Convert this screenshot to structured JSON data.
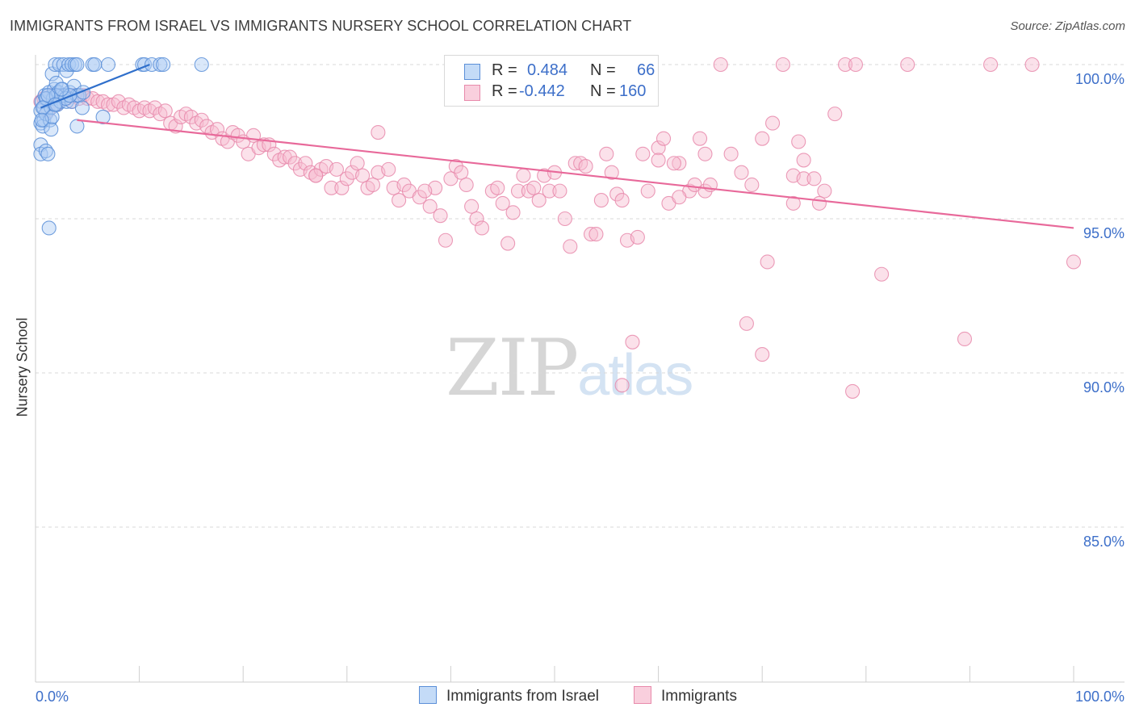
{
  "title": "IMMIGRANTS FROM ISRAEL VS IMMIGRANTS NURSERY SCHOOL CORRELATION CHART",
  "source": "Source: ZipAtlas.com",
  "watermark": {
    "zip": "ZIP",
    "atlas": "atlas"
  },
  "colors": {
    "blue_fill": "#aeccf4",
    "blue_stroke": "#5b8fd8",
    "blue_line": "#2f6fcb",
    "pink_fill": "#f6bcd0",
    "pink_stroke": "#e88aab",
    "pink_line": "#e8699a",
    "axis_text": "#3d6fc9",
    "grid": "#d8d8d8"
  },
  "legend": {
    "rows": [
      {
        "r_label": "R =",
        "r_value": "0.484",
        "n_label": "N =",
        "n_value": "66"
      },
      {
        "r_label": "R =",
        "r_value": "-0.442",
        "n_label": "N =",
        "n_value": "160"
      }
    ]
  },
  "bottom_legend": {
    "israel": "Immigrants from Israel",
    "immigrants": "Immigrants"
  },
  "chart_data": {
    "type": "scatter",
    "title": "IMMIGRANTS FROM ISRAEL VS IMMIGRANTS NURSERY SCHOOL CORRELATION CHART",
    "xlabel": "",
    "ylabel": "Nursery School",
    "xlim": [
      0,
      100
    ],
    "ylim": [
      80.5,
      101
    ],
    "x_tick_labels": [
      "0.0%",
      "100.0%"
    ],
    "y_ticks": [
      100,
      95,
      90,
      85
    ],
    "y_tick_labels": [
      "100.0%",
      "95.0%",
      "90.0%",
      "85.0%"
    ],
    "grid": true,
    "series": [
      {
        "name": "Immigrants from Israel",
        "color": "blue",
        "R": 0.484,
        "N": 66,
        "trend": {
          "x": [
            0.5,
            11
          ],
          "y": [
            98.6,
            100.0
          ]
        },
        "points": [
          [
            0.5,
            98.5
          ],
          [
            0.5,
            98.1
          ],
          [
            0.5,
            97.4
          ],
          [
            0.5,
            97.1
          ],
          [
            0.6,
            98.8
          ],
          [
            0.7,
            98.0
          ],
          [
            0.8,
            98.6
          ],
          [
            0.8,
            98.2
          ],
          [
            0.9,
            99.0
          ],
          [
            1.0,
            97.2
          ],
          [
            1.0,
            98.4
          ],
          [
            1.1,
            98.9
          ],
          [
            1.2,
            97.1
          ],
          [
            1.3,
            94.7
          ],
          [
            1.3,
            99.1
          ],
          [
            1.4,
            98.2
          ],
          [
            1.5,
            98.6
          ],
          [
            1.5,
            97.9
          ],
          [
            1.6,
            99.7
          ],
          [
            1.7,
            98.9
          ],
          [
            1.8,
            98.7
          ],
          [
            1.8,
            99.2
          ],
          [
            1.9,
            100.0
          ],
          [
            2.0,
            99.4
          ],
          [
            2.1,
            98.7
          ],
          [
            2.2,
            99.1
          ],
          [
            2.3,
            100.0
          ],
          [
            2.4,
            98.8
          ],
          [
            2.5,
            99.0
          ],
          [
            2.6,
            99.2
          ],
          [
            2.7,
            100.0
          ],
          [
            2.8,
            99.0
          ],
          [
            3.0,
            99.8
          ],
          [
            3.0,
            98.8
          ],
          [
            3.2,
            100.0
          ],
          [
            3.3,
            99.1
          ],
          [
            3.5,
            98.8
          ],
          [
            3.5,
            100.0
          ],
          [
            3.7,
            99.3
          ],
          [
            3.8,
            100.0
          ],
          [
            4.0,
            99.0
          ],
          [
            4.0,
            98.0
          ],
          [
            4.2,
            99.0
          ],
          [
            4.5,
            98.6
          ],
          [
            4.6,
            99.1
          ],
          [
            5.5,
            100.0
          ],
          [
            5.7,
            100.0
          ],
          [
            7.0,
            100.0
          ],
          [
            6.5,
            98.3
          ],
          [
            10.3,
            100.0
          ],
          [
            10.5,
            100.0
          ],
          [
            11.2,
            100.0
          ],
          [
            12.0,
            100.0
          ],
          [
            12.3,
            100.0
          ],
          [
            16.0,
            100.0
          ],
          [
            1.0,
            98.9
          ],
          [
            1.6,
            98.3
          ],
          [
            2.0,
            99.0
          ],
          [
            2.9,
            98.9
          ],
          [
            3.3,
            99.0
          ],
          [
            0.7,
            98.6
          ],
          [
            1.2,
            99.0
          ],
          [
            1.9,
            98.7
          ],
          [
            2.5,
            99.2
          ],
          [
            0.6,
            98.2
          ],
          [
            4.0,
            100.0
          ]
        ]
      },
      {
        "name": "Immigrants",
        "color": "pink",
        "R": -0.442,
        "N": 160,
        "trend": {
          "x": [
            4,
            100
          ],
          "y": [
            98.2,
            94.7
          ]
        },
        "points": [
          [
            0.5,
            98.8
          ],
          [
            0.8,
            98.9
          ],
          [
            1.2,
            98.5
          ],
          [
            1.5,
            99.0
          ],
          [
            2.0,
            98.7
          ],
          [
            2.2,
            99.0
          ],
          [
            2.8,
            99.0
          ],
          [
            3.0,
            98.9
          ],
          [
            3.5,
            98.8
          ],
          [
            3.8,
            99.0
          ],
          [
            4.2,
            98.9
          ],
          [
            4.6,
            99.0
          ],
          [
            5.0,
            98.9
          ],
          [
            5.5,
            98.9
          ],
          [
            6.0,
            98.8
          ],
          [
            6.5,
            98.8
          ],
          [
            7.0,
            98.7
          ],
          [
            7.5,
            98.7
          ],
          [
            8.0,
            98.8
          ],
          [
            8.5,
            98.6
          ],
          [
            9.0,
            98.7
          ],
          [
            9.5,
            98.6
          ],
          [
            10.0,
            98.5
          ],
          [
            10.5,
            98.6
          ],
          [
            11.0,
            98.5
          ],
          [
            11.5,
            98.6
          ],
          [
            12.0,
            98.4
          ],
          [
            12.5,
            98.5
          ],
          [
            13.0,
            98.1
          ],
          [
            13.5,
            98.0
          ],
          [
            14.0,
            98.3
          ],
          [
            14.5,
            98.4
          ],
          [
            15.0,
            98.3
          ],
          [
            15.5,
            98.1
          ],
          [
            16.0,
            98.2
          ],
          [
            16.5,
            98.0
          ],
          [
            17.0,
            97.8
          ],
          [
            17.5,
            97.9
          ],
          [
            18.0,
            97.6
          ],
          [
            18.5,
            97.5
          ],
          [
            19.0,
            97.8
          ],
          [
            19.5,
            97.7
          ],
          [
            20.0,
            97.5
          ],
          [
            20.5,
            97.1
          ],
          [
            21.0,
            97.7
          ],
          [
            21.5,
            97.3
          ],
          [
            22.0,
            97.4
          ],
          [
            22.5,
            97.4
          ],
          [
            23.0,
            97.1
          ],
          [
            23.5,
            96.9
          ],
          [
            24.0,
            97.0
          ],
          [
            24.5,
            97.0
          ],
          [
            25.0,
            96.8
          ],
          [
            25.5,
            96.6
          ],
          [
            26.0,
            96.8
          ],
          [
            26.5,
            96.5
          ],
          [
            27.0,
            96.4
          ],
          [
            27.5,
            96.6
          ],
          [
            28.0,
            96.7
          ],
          [
            28.5,
            96.0
          ],
          [
            29.0,
            96.6
          ],
          [
            29.5,
            96.0
          ],
          [
            30.0,
            96.3
          ],
          [
            30.5,
            96.5
          ],
          [
            31.0,
            96.8
          ],
          [
            31.5,
            96.4
          ],
          [
            32.0,
            96.0
          ],
          [
            32.5,
            96.1
          ],
          [
            33.0,
            96.5
          ],
          [
            34.0,
            96.6
          ],
          [
            34.5,
            96.0
          ],
          [
            35.0,
            95.6
          ],
          [
            35.5,
            96.1
          ],
          [
            36.0,
            95.9
          ],
          [
            37.0,
            95.7
          ],
          [
            38.0,
            95.4
          ],
          [
            38.5,
            96.0
          ],
          [
            39.0,
            95.1
          ],
          [
            39.5,
            94.3
          ],
          [
            40.0,
            96.3
          ],
          [
            40.5,
            96.7
          ],
          [
            41.0,
            96.5
          ],
          [
            41.5,
            96.1
          ],
          [
            42.0,
            95.4
          ],
          [
            42.5,
            95.0
          ],
          [
            43.0,
            94.7
          ],
          [
            44.0,
            95.9
          ],
          [
            45.0,
            95.5
          ],
          [
            45.5,
            94.2
          ],
          [
            46.0,
            95.2
          ],
          [
            46.5,
            95.9
          ],
          [
            47.0,
            96.4
          ],
          [
            47.5,
            95.9
          ],
          [
            48.0,
            96.0
          ],
          [
            48.5,
            95.6
          ],
          [
            49.0,
            96.4
          ],
          [
            49.5,
            95.9
          ],
          [
            50.0,
            96.5
          ],
          [
            50.5,
            95.9
          ],
          [
            51.0,
            95.0
          ],
          [
            51.5,
            94.1
          ],
          [
            52.0,
            96.8
          ],
          [
            52.5,
            96.8
          ],
          [
            53.0,
            96.7
          ],
          [
            53.5,
            94.5
          ],
          [
            54.0,
            94.5
          ],
          [
            54.5,
            95.6
          ],
          [
            55.0,
            97.1
          ],
          [
            55.5,
            96.5
          ],
          [
            56.0,
            95.8
          ],
          [
            56.5,
            95.6
          ],
          [
            57.0,
            94.3
          ],
          [
            58.0,
            94.4
          ],
          [
            59.0,
            95.9
          ],
          [
            60.0,
            97.3
          ],
          [
            60.5,
            97.6
          ],
          [
            61.0,
            95.5
          ],
          [
            62.0,
            96.8
          ],
          [
            63.0,
            95.9
          ],
          [
            63.5,
            96.1
          ],
          [
            64.0,
            97.6
          ],
          [
            64.5,
            95.9
          ],
          [
            65.0,
            96.1
          ],
          [
            66.0,
            100.0
          ],
          [
            67.0,
            97.1
          ],
          [
            68.0,
            96.5
          ],
          [
            69.0,
            96.1
          ],
          [
            70.0,
            97.6
          ],
          [
            71.0,
            98.1
          ],
          [
            72.0,
            100.0
          ],
          [
            73.0,
            96.4
          ],
          [
            73.5,
            97.5
          ],
          [
            74.0,
            96.3
          ],
          [
            75.0,
            96.3
          ],
          [
            76.0,
            95.9
          ],
          [
            77.0,
            98.4
          ],
          [
            78.0,
            100.0
          ],
          [
            79.0,
            100.0
          ],
          [
            84.0,
            100.0
          ],
          [
            92.0,
            100.0
          ],
          [
            96.0,
            100.0
          ],
          [
            60.0,
            96.9
          ],
          [
            33.0,
            97.8
          ],
          [
            58.5,
            97.1
          ],
          [
            61.5,
            96.8
          ],
          [
            64.5,
            97.1
          ],
          [
            62.0,
            95.7
          ],
          [
            70.5,
            93.6
          ],
          [
            81.5,
            93.2
          ],
          [
            89.5,
            91.1
          ],
          [
            100.0,
            93.6
          ],
          [
            68.5,
            91.6
          ],
          [
            57.5,
            91.0
          ],
          [
            70.0,
            90.6
          ],
          [
            56.5,
            89.6
          ],
          [
            78.7,
            89.4
          ],
          [
            75.5,
            95.5
          ],
          [
            73.0,
            95.5
          ],
          [
            74.0,
            96.9
          ],
          [
            27.0,
            96.4
          ],
          [
            37.5,
            95.9
          ],
          [
            44.5,
            96.0
          ]
        ]
      }
    ]
  }
}
